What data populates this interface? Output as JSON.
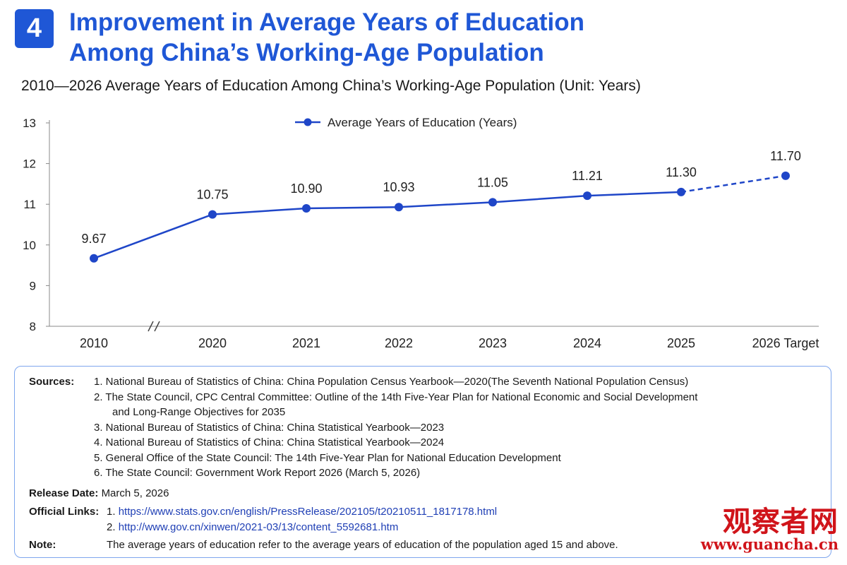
{
  "badge": "4",
  "title": {
    "line1": "Improvement in Average Years of Education",
    "line2": "Among China’s Working-Age Population"
  },
  "subtitle": "2010—2026 Average Years of Education Among China’s Working-Age Population (Unit: Years)",
  "chart_data": {
    "type": "line",
    "categories": [
      "2010",
      "2020",
      "2021",
      "2022",
      "2023",
      "2024",
      "2025",
      "2026 Target"
    ],
    "series": [
      {
        "name": "Average Years of Education (Years)",
        "values": [
          9.67,
          10.75,
          10.9,
          10.93,
          11.05,
          11.21,
          11.3,
          11.7
        ],
        "labels": [
          "9.67",
          "10.75",
          "10.90",
          "10.93",
          "11.05",
          "11.21",
          "11.30",
          "11.70"
        ],
        "color": "#1f46c8",
        "projected_from_index": 6
      }
    ],
    "yticks": [
      "8",
      "9",
      "10",
      "11",
      "12",
      "13"
    ],
    "ylim": [
      8,
      13
    ],
    "axis_break_between": [
      "2010",
      "2020"
    ],
    "legend_position": "top-center",
    "grid": false
  },
  "sources": {
    "label": "Sources:",
    "items": [
      [
        "1.  National Bureau of Statistics of China: China Population Census Yearbook—2020(The Seventh National Population Census)"
      ],
      [
        "2.  The State Council, CPC Central Committee: Outline of the 14th Five-Year Plan for National Economic and Social Development",
        "and Long-Range Objectives for 2035"
      ],
      [
        "3.  National Bureau of Statistics of China: China Statistical Yearbook—2023"
      ],
      [
        "4.  National Bureau of Statistics of China: China Statistical Yearbook—2024"
      ],
      [
        "5.  General Office of the State Council: The 14th Five-Year Plan for National Education Development"
      ],
      [
        "6.  The State Council: Government Work Report 2026 (March 5, 2026)"
      ]
    ],
    "release_label": "Release Date:",
    "release_date": "March 5, 2026",
    "links_label": "Official Links:",
    "links": [
      {
        "num": "1.",
        "url": "https://www.stats.gov.cn/english/PressRelease/202105/t20210511_1817178.html"
      },
      {
        "num": "2.",
        "url": "http://www.gov.cn/xinwen/2021-03/13/content_5592681.htm"
      }
    ],
    "note_label": "Note:",
    "note": "The average years of education refer to the average years of education of the population aged 15 and above."
  },
  "watermark": {
    "cn": "观察者网",
    "url": "www.guancha.cn"
  }
}
